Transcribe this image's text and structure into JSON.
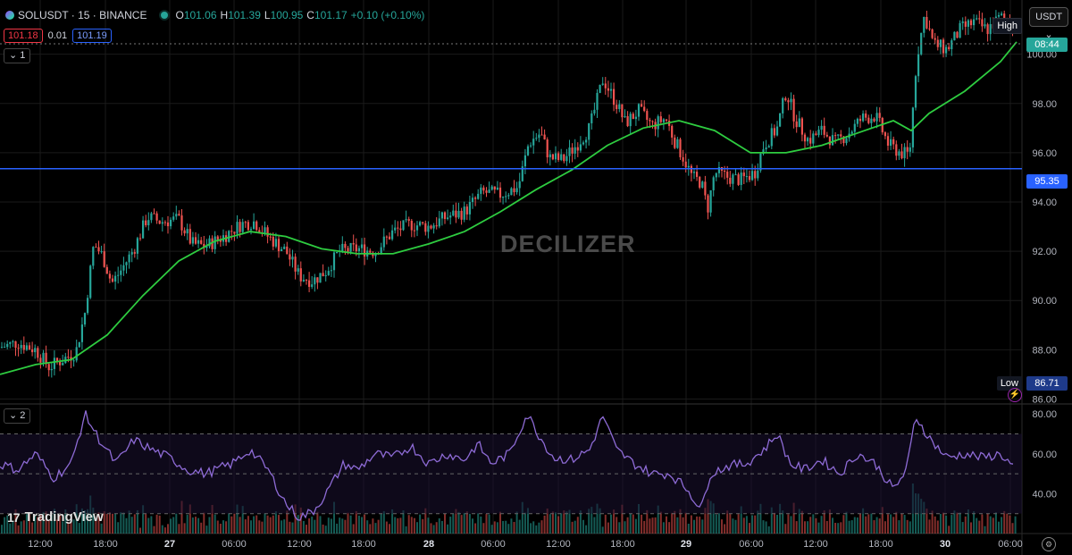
{
  "header": {
    "symbol": "SOLUSDT · 15 · BINANCE",
    "open_key": "O",
    "open": "101.06",
    "high_key": "H",
    "high": "101.39",
    "low_key": "L",
    "low": "100.95",
    "close_key": "C",
    "close": "101.17",
    "change": "+0.10 (+0.10%)"
  },
  "quote": {
    "bid": "101.18",
    "spread": "0.01",
    "ask": "101.19"
  },
  "pane1_label": "1",
  "pane2_label": "2",
  "currency_button": "USDT",
  "price_scale": {
    "ticks": [
      "100.00",
      "98.00",
      "96.00",
      "94.00",
      "92.00",
      "90.00",
      "88.00",
      "86.00"
    ],
    "high_label": "High",
    "low_label": "Low",
    "low_value": "86.71",
    "countdown": "08:44",
    "horizontal_line_value": "95.35"
  },
  "rsi_scale": {
    "ticks": [
      "80.00",
      "60.00",
      "40.00"
    ]
  },
  "time_axis": {
    "ticks": [
      "12:00",
      "18:00",
      "27",
      "06:00",
      "12:00",
      "18:00",
      "28",
      "06:00",
      "12:00",
      "18:00",
      "29",
      "06:00",
      "12:00",
      "18:00",
      "30",
      "06:00"
    ]
  },
  "watermark": "DECILIZER",
  "branding": "TradingView",
  "colors": {
    "up": "#26a69a",
    "down": "#ef5350",
    "ma": "#2ecc40",
    "rsi": "#8e6bd6",
    "hline": "#2962ff",
    "background": "#000000"
  },
  "chart_data": {
    "type": "candlestick",
    "symbol": "SOLUSDT",
    "interval": "15",
    "price_range": [
      85.8,
      102.2
    ],
    "horizontal_line": 95.35,
    "keypoints": [
      [
        0,
        88.1
      ],
      [
        20,
        88.3
      ],
      [
        40,
        88.0
      ],
      [
        55,
        87.3
      ],
      [
        70,
        87.6
      ],
      [
        85,
        87.9
      ],
      [
        95,
        89.5
      ],
      [
        105,
        92.3
      ],
      [
        115,
        91.8
      ],
      [
        125,
        90.7
      ],
      [
        135,
        91.2
      ],
      [
        150,
        92.1
      ],
      [
        165,
        93.4
      ],
      [
        180,
        93.2
      ],
      [
        200,
        93.3
      ],
      [
        215,
        92.3
      ],
      [
        230,
        92.2
      ],
      [
        250,
        92.6
      ],
      [
        270,
        93.1
      ],
      [
        285,
        93.2
      ],
      [
        300,
        92.6
      ],
      [
        320,
        92.0
      ],
      [
        335,
        91.0
      ],
      [
        350,
        90.8
      ],
      [
        365,
        91.2
      ],
      [
        380,
        92.0
      ],
      [
        400,
        92.1
      ],
      [
        420,
        92.0
      ],
      [
        440,
        92.8
      ],
      [
        460,
        93.1
      ],
      [
        480,
        93.0
      ],
      [
        500,
        93.4
      ],
      [
        520,
        93.6
      ],
      [
        540,
        94.4
      ],
      [
        560,
        94.3
      ],
      [
        580,
        94.6
      ],
      [
        592,
        96.4
      ],
      [
        605,
        96.8
      ],
      [
        615,
        95.8
      ],
      [
        630,
        95.7
      ],
      [
        645,
        96.3
      ],
      [
        660,
        97.0
      ],
      [
        675,
        99.0
      ],
      [
        690,
        98.0
      ],
      [
        700,
        97.2
      ],
      [
        715,
        97.7
      ],
      [
        730,
        97.1
      ],
      [
        745,
        97.4
      ],
      [
        755,
        96.5
      ],
      [
        765,
        95.8
      ],
      [
        775,
        95.0
      ],
      [
        785,
        94.8
      ],
      [
        792,
        93.7
      ],
      [
        800,
        95.2
      ],
      [
        815,
        95.0
      ],
      [
        830,
        94.9
      ],
      [
        845,
        95.2
      ],
      [
        855,
        96.3
      ],
      [
        870,
        97.0
      ],
      [
        880,
        98.5
      ],
      [
        890,
        97.4
      ],
      [
        905,
        96.5
      ],
      [
        920,
        96.9
      ],
      [
        935,
        96.4
      ],
      [
        950,
        96.8
      ],
      [
        965,
        97.4
      ],
      [
        980,
        97.5
      ],
      [
        995,
        96.3
      ],
      [
        1008,
        96.0
      ],
      [
        1018,
        95.9
      ],
      [
        1026,
        99.8
      ],
      [
        1035,
        101.6
      ],
      [
        1045,
        100.4
      ],
      [
        1060,
        100.2
      ],
      [
        1075,
        101.0
      ],
      [
        1090,
        101.3
      ],
      [
        1105,
        101.0
      ],
      [
        1120,
        101.5
      ],
      [
        1135,
        101.2
      ]
    ],
    "moving_average": [
      [
        0,
        87.0
      ],
      [
        40,
        87.4
      ],
      [
        80,
        87.6
      ],
      [
        120,
        88.6
      ],
      [
        160,
        90.2
      ],
      [
        200,
        91.6
      ],
      [
        240,
        92.4
      ],
      [
        280,
        92.8
      ],
      [
        320,
        92.6
      ],
      [
        360,
        92.1
      ],
      [
        400,
        91.9
      ],
      [
        440,
        91.9
      ],
      [
        480,
        92.3
      ],
      [
        520,
        92.8
      ],
      [
        560,
        93.6
      ],
      [
        600,
        94.5
      ],
      [
        640,
        95.3
      ],
      [
        680,
        96.3
      ],
      [
        720,
        97.0
      ],
      [
        760,
        97.3
      ],
      [
        800,
        96.9
      ],
      [
        840,
        96.0
      ],
      [
        880,
        96.0
      ],
      [
        920,
        96.3
      ],
      [
        960,
        96.8
      ],
      [
        1000,
        97.3
      ],
      [
        1020,
        96.9
      ],
      [
        1040,
        97.6
      ],
      [
        1080,
        98.5
      ],
      [
        1120,
        99.7
      ],
      [
        1138,
        100.5
      ]
    ],
    "rsi": {
      "range": [
        20,
        85
      ],
      "bands": [
        70,
        50,
        30
      ],
      "keypoints": [
        [
          0,
          55
        ],
        [
          20,
          52
        ],
        [
          40,
          60
        ],
        [
          60,
          48
        ],
        [
          80,
          55
        ],
        [
          95,
          80
        ],
        [
          110,
          68
        ],
        [
          130,
          55
        ],
        [
          150,
          67
        ],
        [
          170,
          62
        ],
        [
          190,
          58
        ],
        [
          210,
          52
        ],
        [
          230,
          50
        ],
        [
          260,
          55
        ],
        [
          280,
          62
        ],
        [
          300,
          52
        ],
        [
          320,
          35
        ],
        [
          335,
          28
        ],
        [
          350,
          31
        ],
        [
          365,
          40
        ],
        [
          385,
          55
        ],
        [
          400,
          52
        ],
        [
          420,
          60
        ],
        [
          440,
          58
        ],
        [
          460,
          64
        ],
        [
          480,
          55
        ],
        [
          500,
          60
        ],
        [
          520,
          57
        ],
        [
          535,
          65
        ],
        [
          550,
          55
        ],
        [
          570,
          60
        ],
        [
          590,
          80
        ],
        [
          605,
          68
        ],
        [
          620,
          58
        ],
        [
          640,
          57
        ],
        [
          660,
          62
        ],
        [
          675,
          79
        ],
        [
          690,
          62
        ],
        [
          710,
          55
        ],
        [
          730,
          50
        ],
        [
          750,
          50
        ],
        [
          770,
          42
        ],
        [
          785,
          32
        ],
        [
          795,
          50
        ],
        [
          815,
          54
        ],
        [
          835,
          55
        ],
        [
          855,
          62
        ],
        [
          870,
          70
        ],
        [
          885,
          55
        ],
        [
          900,
          52
        ],
        [
          920,
          57
        ],
        [
          940,
          50
        ],
        [
          960,
          60
        ],
        [
          980,
          55
        ],
        [
          1000,
          42
        ],
        [
          1015,
          52
        ],
        [
          1025,
          79
        ],
        [
          1040,
          68
        ],
        [
          1060,
          58
        ],
        [
          1080,
          60
        ],
        [
          1100,
          58
        ],
        [
          1120,
          60
        ],
        [
          1135,
          53
        ]
      ]
    }
  }
}
